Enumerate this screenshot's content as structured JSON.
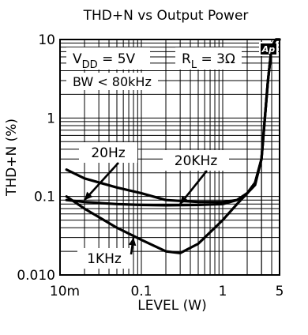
{
  "chart_data": {
    "type": "line",
    "title": "THD+N vs Output Power",
    "xlabel": "LEVEL (W)",
    "ylabel": "THD+N (%)",
    "x_scale": "log",
    "y_scale": "log",
    "xlim": [
      0.01,
      5
    ],
    "ylim": [
      0.01,
      10
    ],
    "x_ticks": [
      {
        "value": 0.01,
        "label": "10m"
      },
      {
        "value": 0.1,
        "label": "0.1"
      },
      {
        "value": 1,
        "label": "1"
      },
      {
        "value": 5,
        "label": "5"
      }
    ],
    "y_ticks": [
      {
        "value": 0.01,
        "label": "0.010"
      },
      {
        "value": 0.1,
        "label": "0.1"
      },
      {
        "value": 1,
        "label": "1"
      },
      {
        "value": 10,
        "label": "10"
      }
    ],
    "grid": true,
    "logo": "Ap",
    "conditions": {
      "vdd": {
        "main": "V",
        "sub": "DD",
        "rest": " = 5V"
      },
      "rl": {
        "main": "R",
        "sub": "L",
        "rest": " = 3Ω"
      },
      "bw": "BW < 80kHz"
    },
    "series": [
      {
        "name": "20Hz",
        "x": [
          0.012,
          0.02,
          0.05,
          0.1,
          0.2,
          0.5,
          1,
          1.5,
          2,
          2.5,
          3,
          3.3,
          3.6,
          4,
          4.5,
          5
        ],
        "y": [
          0.22,
          0.17,
          0.13,
          0.11,
          0.09,
          0.085,
          0.085,
          0.09,
          0.11,
          0.15,
          0.3,
          1,
          3,
          8,
          10,
          10
        ]
      },
      {
        "name": "20KHz",
        "x": [
          0.012,
          0.02,
          0.05,
          0.1,
          0.2,
          0.5,
          1,
          1.5,
          2,
          2.5,
          3,
          3.3,
          3.6,
          4,
          4.5,
          5
        ],
        "y": [
          0.09,
          0.085,
          0.08,
          0.078,
          0.077,
          0.078,
          0.08,
          0.09,
          0.11,
          0.14,
          0.3,
          1,
          3,
          8,
          10,
          10
        ]
      },
      {
        "name": "1KHz",
        "x": [
          0.012,
          0.02,
          0.05,
          0.1,
          0.15,
          0.2,
          0.3,
          0.5,
          1,
          1.5,
          2,
          2.5,
          3,
          3.3,
          3.6,
          4,
          4.5,
          5
        ],
        "y": [
          0.1,
          0.07,
          0.04,
          0.028,
          0.023,
          0.02,
          0.019,
          0.025,
          0.05,
          0.08,
          0.11,
          0.15,
          0.3,
          1,
          3,
          8,
          10,
          10
        ]
      }
    ],
    "annotations": [
      {
        "text": "20Hz",
        "series": "20Hz",
        "point": [
          0.02,
          0.09
        ]
      },
      {
        "text": "20KHz",
        "series": "20KHz",
        "point": [
          0.3,
          0.08
        ]
      },
      {
        "text": "1KHz",
        "series": "1KHz",
        "point": [
          0.08,
          0.03
        ]
      }
    ]
  }
}
